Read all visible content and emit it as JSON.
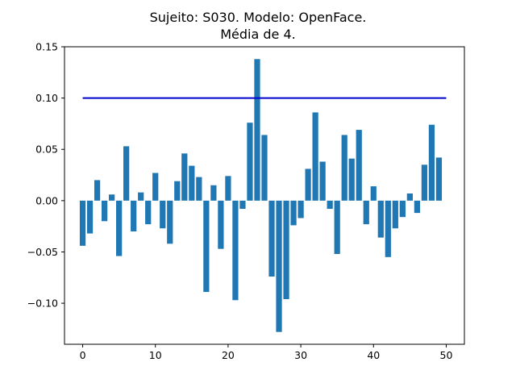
{
  "chart_data": {
    "type": "bar",
    "title": "Sujeito: S030. Modelo: OpenFace.",
    "subtitle": "Média de 4.",
    "xlabel": "",
    "ylabel": "",
    "xlim": [
      -2.5,
      52.5
    ],
    "ylim": [
      -0.14,
      0.15
    ],
    "xticks": [
      0,
      10,
      20,
      30,
      40,
      50
    ],
    "yticks": [
      0.15,
      0.1,
      0.05,
      0.0,
      -0.05,
      -0.1
    ],
    "ytick_labels": [
      "0.15",
      "0.10",
      "0.05",
      "0.00",
      "−0.05",
      "−0.10"
    ],
    "grid": false,
    "bar_color": "#1f77b4",
    "x": [
      0,
      1,
      2,
      3,
      4,
      5,
      6,
      7,
      8,
      9,
      10,
      11,
      12,
      13,
      14,
      15,
      16,
      17,
      18,
      19,
      20,
      21,
      22,
      23,
      24,
      25,
      26,
      27,
      28,
      29,
      30,
      31,
      32,
      33,
      34,
      35,
      36,
      37,
      38,
      39,
      40,
      41,
      42,
      43,
      44,
      45,
      46,
      47,
      48,
      49
    ],
    "values": [
      -0.044,
      -0.032,
      0.02,
      -0.02,
      0.006,
      -0.054,
      0.053,
      -0.03,
      0.008,
      -0.023,
      0.027,
      -0.027,
      -0.042,
      0.019,
      0.046,
      0.034,
      0.023,
      -0.089,
      0.015,
      -0.047,
      0.024,
      -0.097,
      -0.008,
      0.076,
      0.138,
      0.064,
      -0.074,
      -0.128,
      -0.096,
      -0.024,
      -0.017,
      0.031,
      0.086,
      0.038,
      -0.008,
      -0.052,
      0.064,
      0.041,
      0.069,
      -0.023,
      0.014,
      -0.036,
      -0.055,
      -0.027,
      -0.016,
      0.007,
      -0.012,
      0.035,
      0.074,
      0.042
    ],
    "reference_line": {
      "x": [
        0,
        50
      ],
      "y": 0.1,
      "color": "#0000cc"
    }
  }
}
